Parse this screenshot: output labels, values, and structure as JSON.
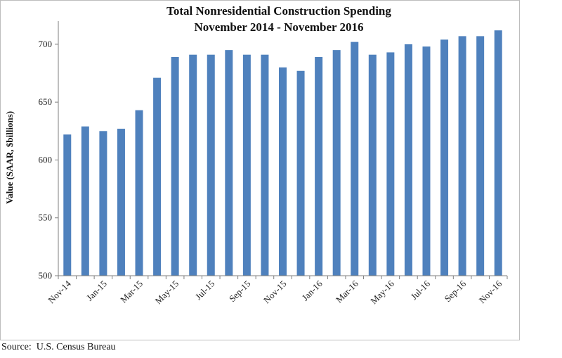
{
  "chart_data": {
    "type": "bar",
    "title": "Total Nonresidential Construction Spending",
    "subtitle": "November 2014 - November 2016",
    "xlabel": "",
    "ylabel": "Value (SAAR, $billions)",
    "ylim": [
      500,
      720
    ],
    "yticks": [
      500,
      550,
      600,
      650,
      700
    ],
    "grid": false,
    "bar_color": "#4F81BD",
    "categories": [
      "Nov-14",
      "Dec-14",
      "Jan-15",
      "Feb-15",
      "Mar-15",
      "Apr-15",
      "May-15",
      "Jun-15",
      "Jul-15",
      "Aug-15",
      "Sep-15",
      "Oct-15",
      "Nov-15",
      "Dec-15",
      "Jan-16",
      "Feb-16",
      "Mar-16",
      "Apr-16",
      "May-16",
      "Jun-16",
      "Jul-16",
      "Aug-16",
      "Sep-16",
      "Oct-16",
      "Nov-16"
    ],
    "visible_tick_labels": [
      "Nov-14",
      "Jan-15",
      "Mar-15",
      "May-15",
      "Jul-15",
      "Sep-15",
      "Nov-15",
      "Jan-16",
      "Mar-16",
      "May-16",
      "Jul-16",
      "Sep-16",
      "Nov-16"
    ],
    "values": [
      622,
      629,
      625,
      627,
      643,
      671,
      689,
      691,
      691,
      695,
      691,
      691,
      680,
      677,
      689,
      695,
      702,
      691,
      693,
      700,
      698,
      704,
      707,
      707,
      712
    ]
  },
  "source": "Source:  U.S. Census Bureau"
}
